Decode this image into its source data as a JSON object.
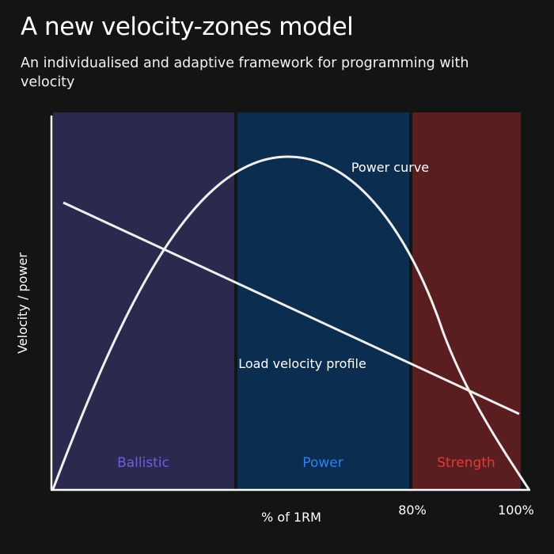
{
  "title": "A new velocity-zones model",
  "subtitle": "An individualised and adaptive framework for programming with velocity",
  "chart_data": {
    "type": "line",
    "xlabel": "% of 1RM",
    "ylabel": "Velocity / power",
    "x_tick_labels": [
      "80%",
      "100%"
    ],
    "zones": [
      {
        "name": "Ballistic",
        "color": "#2a2a4e",
        "label_color": "#6a5fe0"
      },
      {
        "name": "Power",
        "color": "#0b2d4f",
        "label_color": "#2b82f0"
      },
      {
        "name": "Strength",
        "color": "#5a1e20",
        "label_color": "#e23a3a"
      }
    ],
    "series": [
      {
        "name": "Power curve",
        "color": "#ffffff"
      },
      {
        "name": "Load velocity profile",
        "color": "#ffffff"
      }
    ],
    "grid": false
  }
}
